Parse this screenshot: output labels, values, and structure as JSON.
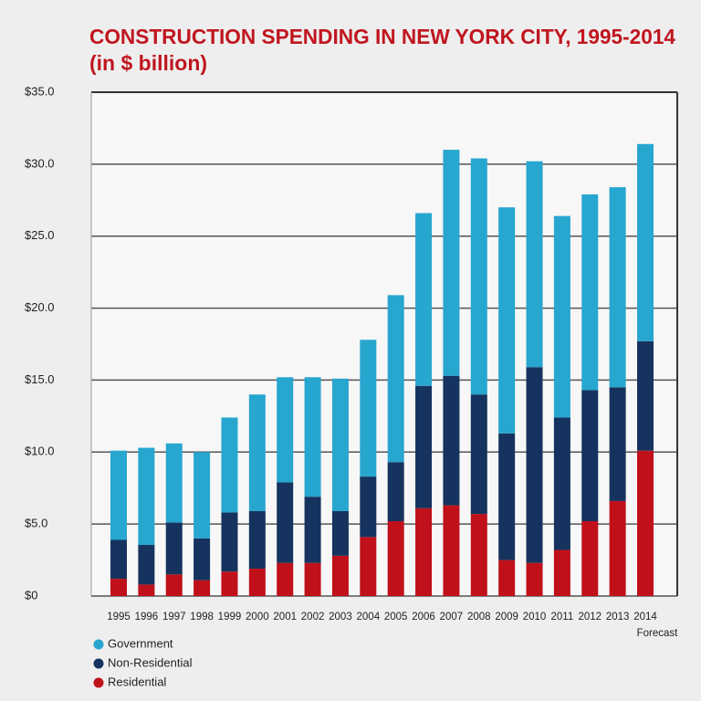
{
  "chart_data": {
    "type": "stacked_bar",
    "title": "CONSTRUCTION SPENDING IN NEW YORK CITY, 1995-2014",
    "subtitle": "(in $ billion)",
    "categories": [
      "1995",
      "1996",
      "1997",
      "1998",
      "1999",
      "2000",
      "2001",
      "2002",
      "2003",
      "2004",
      "2005",
      "2006",
      "2007",
      "2008",
      "2009",
      "2010",
      "2011",
      "2012",
      "2013",
      "2014"
    ],
    "annotation": "Forecast",
    "series": [
      {
        "name": "Residential",
        "color": "#c0101a",
        "values": [
          1.2,
          0.8,
          1.5,
          1.1,
          1.7,
          1.9,
          2.3,
          2.3,
          2.8,
          4.1,
          5.2,
          6.1,
          6.3,
          5.7,
          2.5,
          2.3,
          3.2,
          5.2,
          6.6,
          10.1
        ]
      },
      {
        "name": "Non-Residential",
        "color": "#15335e",
        "values": [
          2.7,
          2.75,
          3.6,
          2.9,
          4.1,
          4.0,
          5.6,
          4.6,
          3.1,
          4.2,
          4.1,
          8.5,
          9.0,
          8.3,
          8.8,
          13.6,
          9.2,
          9.1,
          7.9,
          7.6
        ]
      },
      {
        "name": "Government",
        "color": "#27a6cf",
        "values": [
          6.2,
          6.75,
          5.5,
          6.0,
          6.6,
          8.1,
          7.3,
          8.3,
          9.2,
          9.5,
          11.6,
          12.0,
          15.7,
          16.4,
          15.7,
          14.3,
          14.0,
          13.6,
          13.9,
          13.7
        ]
      }
    ],
    "ylim": [
      0,
      35
    ],
    "yticks": [
      {
        "value": 0,
        "label": "$0"
      },
      {
        "value": 5,
        "label": "$5.0"
      },
      {
        "value": 10,
        "label": "$10.0"
      },
      {
        "value": 15,
        "label": "$15.0"
      },
      {
        "value": 20,
        "label": "$20.0"
      },
      {
        "value": 25,
        "label": "$25.0"
      },
      {
        "value": 30,
        "label": "$30.0"
      },
      {
        "value": 35,
        "label": "$35.0"
      }
    ],
    "grid": true
  }
}
